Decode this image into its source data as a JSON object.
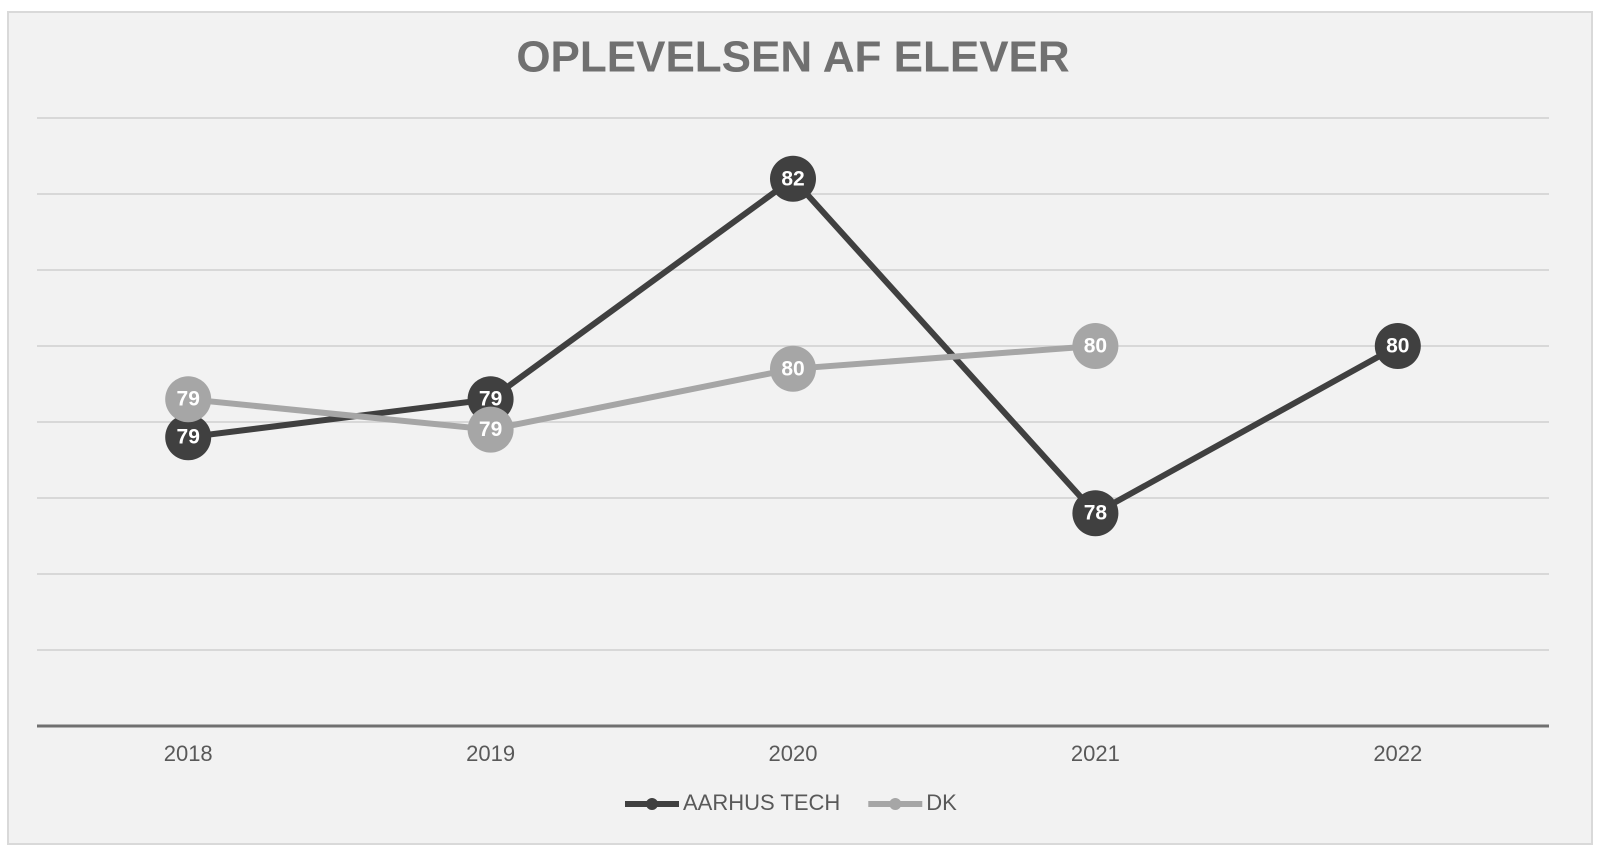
{
  "chart_data": {
    "type": "line",
    "title": "OPLEVELSEN AF ELEVER",
    "categories": [
      "2018",
      "2019",
      "2020",
      "2021",
      "2022"
    ],
    "series": [
      {
        "name": "AARHUS TECH",
        "color": "#404040",
        "values": [
          78.8,
          79.3,
          82.2,
          77.8,
          80.0
        ],
        "value_labels": [
          "79",
          "79",
          "82",
          "78",
          "80"
        ]
      },
      {
        "name": "DK",
        "color": "#a6a6a6",
        "values": [
          79.3,
          78.9,
          79.7,
          80.0,
          null
        ],
        "value_labels": [
          "79",
          "79",
          "80",
          "80",
          null
        ]
      }
    ],
    "ylim": [
      75,
      83
    ],
    "yticks": [
      75,
      76,
      77,
      78,
      79,
      80,
      81,
      82,
      83
    ],
    "grid": true,
    "legend": "bottom"
  }
}
